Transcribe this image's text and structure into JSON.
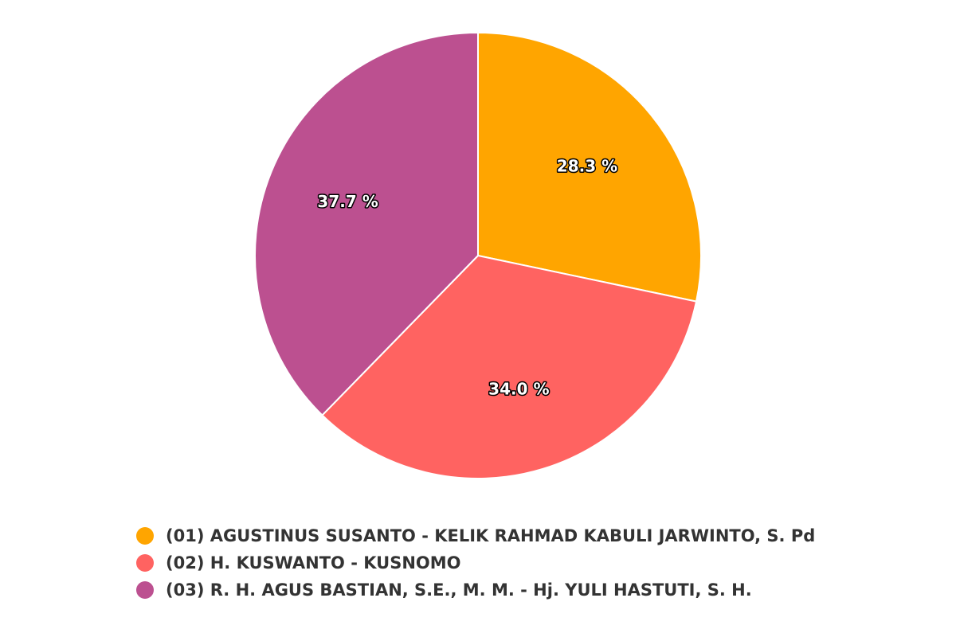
{
  "chart_data": {
    "type": "pie",
    "categories": [
      "(01) AGUSTINUS SUSANTO - KELIK RAHMAD KABULI JARWINTO, S. Pd",
      "(02) H. KUSWANTO - KUSNOMO",
      "(03) R. H. AGUS BASTIAN, S.E., M. M. - Hj. YULI HASTUTI, S. H."
    ],
    "values": [
      28.3,
      34.0,
      37.7
    ],
    "value_labels": [
      "28.3 %",
      "34.0 %",
      "37.7 %"
    ],
    "colors": [
      "#ffa500",
      "#ff6361",
      "#bc5090"
    ]
  }
}
